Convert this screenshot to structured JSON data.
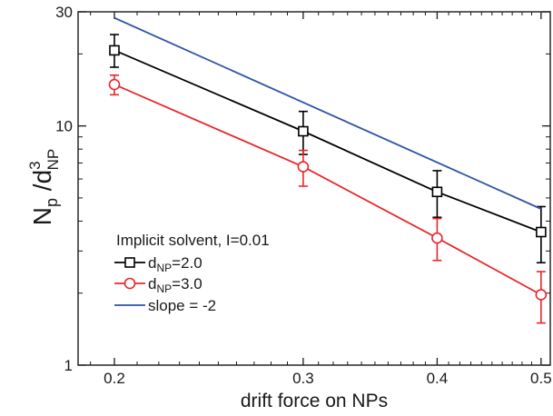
{
  "chart_data": {
    "type": "line",
    "title": "",
    "xlabel": "drift force on NPs",
    "ylabel": {
      "base": "N",
      "base_sub": "p",
      "sep": " /d",
      "sup": "3",
      "sub": "NP"
    },
    "x_scale": "log",
    "y_scale": "log",
    "xlim": [
      0.185,
      0.51
    ],
    "ylim": [
      1,
      30
    ],
    "x_ticks": [
      0.2,
      0.3,
      0.4,
      0.5
    ],
    "x_tick_labels": [
      "0.2",
      "0.3",
      "0.4",
      "0.5"
    ],
    "y_ticks": [
      1,
      10,
      30
    ],
    "y_tick_labels": [
      "1",
      "10",
      "30"
    ],
    "grid": false,
    "legend_position": "bottom-left",
    "legend_title": "Implicit solvent, I=0.01",
    "series": [
      {
        "name": {
          "base": "d",
          "sub": "NP",
          "rest": "=2.0"
        },
        "color": "#000000",
        "marker": "square",
        "x": [
          0.2,
          0.3,
          0.4,
          0.5
        ],
        "y": [
          20.7,
          9.5,
          5.3,
          3.6
        ],
        "err_low": [
          17.6,
          7.6,
          4.15,
          2.68
        ],
        "err_high": [
          24.1,
          11.5,
          6.5,
          4.6
        ]
      },
      {
        "name": {
          "base": "d",
          "sub": "NP",
          "rest": "=3.0"
        },
        "color": "#e8262b",
        "marker": "circle",
        "x": [
          0.2,
          0.3,
          0.4,
          0.5
        ],
        "y": [
          14.9,
          6.75,
          3.4,
          1.97
        ],
        "err_low": [
          13.5,
          5.6,
          2.74,
          1.5
        ],
        "err_high": [
          16.3,
          7.9,
          4.1,
          2.46
        ]
      },
      {
        "name": {
          "base": "slope = -2",
          "sub": "",
          "rest": ""
        },
        "color": "#2e53a6",
        "marker": "none",
        "x": [
          0.2,
          0.5
        ],
        "y": [
          28.3,
          4.5
        ]
      }
    ]
  }
}
